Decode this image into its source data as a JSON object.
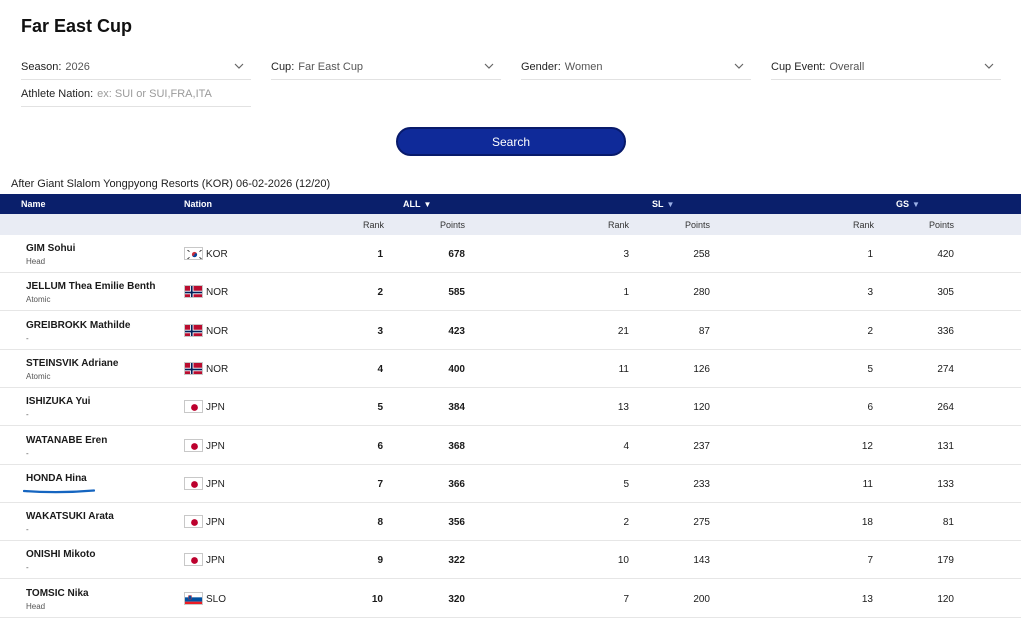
{
  "page": {
    "title": "Far East Cup"
  },
  "filters": {
    "season": {
      "label": "Season",
      "value": "2026"
    },
    "cup": {
      "label": "Cup",
      "value": "Far East Cup"
    },
    "gender": {
      "label": "Gender",
      "value": "Women"
    },
    "cup_event": {
      "label": "Cup Event",
      "value": "Overall"
    },
    "athlete_nation": {
      "label": "Athlete Nation:",
      "placeholder": "ex: SUI or SUI,FRA,ITA"
    }
  },
  "search_label": "Search",
  "subtitle": "After Giant Slalom Yongpyong Resorts (KOR) 06-02-2026 (12/20)",
  "table": {
    "headers": {
      "name": "Name",
      "nation": "Nation",
      "all": "ALL",
      "sl": "SL",
      "gs": "GS"
    },
    "subheaders": {
      "rank": "Rank",
      "points": "Points"
    },
    "rows": [
      {
        "name": "GIM Sohui",
        "brand": "Head",
        "nation": "KOR",
        "all_rank": "1",
        "all_points": "678",
        "sl_rank": "3",
        "sl_points": "258",
        "gs_rank": "1",
        "gs_points": "420"
      },
      {
        "name": "JELLUM Thea Emilie Benth",
        "brand": "Atomic",
        "nation": "NOR",
        "all_rank": "2",
        "all_points": "585",
        "sl_rank": "1",
        "sl_points": "280",
        "gs_rank": "3",
        "gs_points": "305"
      },
      {
        "name": "GREIBROKK Mathilde",
        "brand": "-",
        "nation": "NOR",
        "all_rank": "3",
        "all_points": "423",
        "sl_rank": "21",
        "sl_points": "87",
        "gs_rank": "2",
        "gs_points": "336"
      },
      {
        "name": "STEINSVIK Adriane",
        "brand": "Atomic",
        "nation": "NOR",
        "all_rank": "4",
        "all_points": "400",
        "sl_rank": "11",
        "sl_points": "126",
        "gs_rank": "5",
        "gs_points": "274"
      },
      {
        "name": "ISHIZUKA Yui",
        "brand": "-",
        "nation": "JPN",
        "all_rank": "5",
        "all_points": "384",
        "sl_rank": "13",
        "sl_points": "120",
        "gs_rank": "6",
        "gs_points": "264"
      },
      {
        "name": "WATANABE Eren",
        "brand": "-",
        "nation": "JPN",
        "all_rank": "6",
        "all_points": "368",
        "sl_rank": "4",
        "sl_points": "237",
        "gs_rank": "12",
        "gs_points": "131"
      },
      {
        "name": "HONDA Hina",
        "brand": "-",
        "nation": "JPN",
        "all_rank": "7",
        "all_points": "366",
        "sl_rank": "5",
        "sl_points": "233",
        "gs_rank": "11",
        "gs_points": "133"
      },
      {
        "name": "WAKATSUKI Arata",
        "brand": "-",
        "nation": "JPN",
        "all_rank": "8",
        "all_points": "356",
        "sl_rank": "2",
        "sl_points": "275",
        "gs_rank": "18",
        "gs_points": "81"
      },
      {
        "name": "ONISHI Mikoto",
        "brand": "-",
        "nation": "JPN",
        "all_rank": "9",
        "all_points": "322",
        "sl_rank": "10",
        "sl_points": "143",
        "gs_rank": "7",
        "gs_points": "179"
      },
      {
        "name": "TOMSIC Nika",
        "brand": "Head",
        "nation": "SLO",
        "all_rank": "10",
        "all_points": "320",
        "sl_rank": "7",
        "sl_points": "200",
        "gs_rank": "13",
        "gs_points": "120"
      }
    ]
  },
  "colors": {
    "header_bg": "#0a1f6b",
    "button_bg": "#0f2a99",
    "subheader_bg": "#e9ecf4",
    "annotation": "#1565c0"
  }
}
